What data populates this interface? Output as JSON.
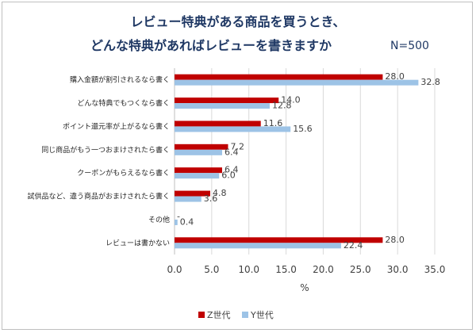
{
  "chart_data": {
    "type": "bar",
    "orientation": "horizontal",
    "title_line1": "レビュー特典がある商品を買うとき、",
    "title_line2": "どんな特典があればレビューを書きますか",
    "sample_note": "N=500",
    "categories": [
      "購入金額が割引されるなら書く",
      "どんな特典でもつくなら書く",
      "ポイント還元率が上がるなら書く",
      "同じ商品がもう一つおまけされたら書く",
      "クーポンがもらえるなら書く",
      "試供品など、違う商品がおまけされたら書く",
      "その他",
      "レビューは書かない"
    ],
    "series": [
      {
        "name": "Z世代",
        "values": [
          28.0,
          14.0,
          11.6,
          7.2,
          6.4,
          4.8,
          null,
          28.0
        ],
        "color": "#c00000"
      },
      {
        "name": "Y世代",
        "values": [
          32.8,
          12.8,
          15.6,
          6.4,
          6.0,
          3.6,
          0.4,
          22.4
        ],
        "color": "#9dc3e6"
      }
    ],
    "value_labels": [
      [
        "28.0",
        "14.0",
        "11.6",
        "7.2",
        "6.4",
        "4.8",
        "-",
        "28.0"
      ],
      [
        "32.8",
        "12.8",
        "15.6",
        "6.4",
        "6.0",
        "3.6",
        "0.4",
        "22.4"
      ]
    ],
    "xlabel": "%",
    "xlim": [
      0,
      35
    ],
    "xticks": [
      "0.0",
      "5.0",
      "10.0",
      "15.0",
      "20.0",
      "25.0",
      "30.0",
      "35.0"
    ],
    "grid": true,
    "legend_position": "bottom"
  }
}
